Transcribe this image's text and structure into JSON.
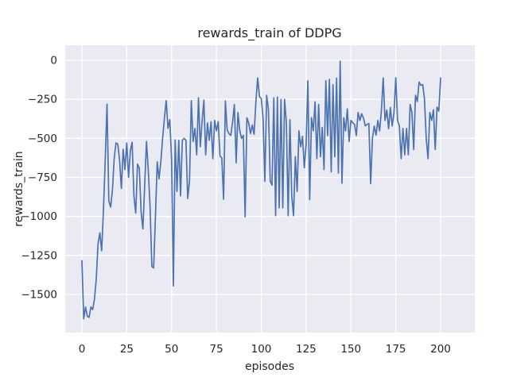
{
  "figure": {
    "title": "rewards_train of DDPG",
    "xlabel": "episodes",
    "ylabel": "rewards_train"
  },
  "colors": {
    "figure_bg": "#ffffff",
    "plot_bg": "#eaeaf2",
    "grid": "#ffffff",
    "line": "#4c72b0",
    "text": "#262626"
  },
  "chart_data": {
    "type": "line",
    "title": "rewards_train of DDPG",
    "xlabel": "episodes",
    "ylabel": "rewards_train",
    "legend": null,
    "grid": true,
    "x_ticks": [
      0,
      25,
      50,
      75,
      100,
      125,
      150,
      175,
      200
    ],
    "y_ticks": [
      0,
      -250,
      -500,
      -750,
      -1000,
      -1250,
      -1500
    ],
    "xlim": [
      -8.5,
      219
    ],
    "ylim": [
      -1741,
      96
    ],
    "x": [
      0,
      1,
      2,
      3,
      4,
      5,
      6,
      7,
      8,
      9,
      10,
      11,
      12,
      13,
      14,
      15,
      16,
      17,
      18,
      19,
      20,
      21,
      22,
      23,
      24,
      25,
      26,
      27,
      28,
      29,
      30,
      31,
      32,
      33,
      34,
      35,
      36,
      37,
      38,
      39,
      40,
      41,
      42,
      43,
      44,
      45,
      46,
      47,
      48,
      49,
      50,
      51,
      52,
      53,
      54,
      55,
      56,
      57,
      58,
      59,
      60,
      61,
      62,
      63,
      64,
      65,
      66,
      67,
      68,
      69,
      70,
      71,
      72,
      73,
      74,
      75,
      76,
      77,
      78,
      79,
      80,
      81,
      82,
      83,
      84,
      85,
      86,
      87,
      88,
      89,
      90,
      91,
      92,
      93,
      94,
      95,
      96,
      97,
      98,
      99,
      100,
      101,
      102,
      103,
      104,
      105,
      106,
      107,
      108,
      109,
      110,
      111,
      112,
      113,
      114,
      115,
      116,
      117,
      118,
      119,
      120,
      121,
      122,
      123,
      124,
      125,
      126,
      127,
      128,
      129,
      130,
      131,
      132,
      133,
      134,
      135,
      136,
      137,
      138,
      139,
      140,
      141,
      142,
      143,
      144,
      145,
      146,
      147,
      148,
      149,
      150,
      151,
      152,
      153,
      154,
      155,
      156,
      157,
      158,
      159,
      160,
      161,
      162,
      163,
      164,
      165,
      166,
      167,
      168,
      169,
      170,
      171,
      172,
      173,
      174,
      175,
      176,
      177,
      178,
      179,
      180,
      181,
      182,
      183,
      184,
      185,
      186,
      187,
      188,
      189,
      190,
      191,
      192,
      193,
      194,
      195,
      196,
      197,
      198,
      199,
      200
    ],
    "y": [
      -1283,
      -1656,
      -1580,
      -1639,
      -1647,
      -1580,
      -1597,
      -1529,
      -1400,
      -1173,
      -1105,
      -1220,
      -962,
      -639,
      -280,
      -900,
      -940,
      -834,
      -630,
      -529,
      -537,
      -640,
      -820,
      -570,
      -700,
      -529,
      -750,
      -580,
      -525,
      -870,
      -978,
      -665,
      -690,
      -970,
      -1080,
      -800,
      -520,
      -700,
      -940,
      -1320,
      -1330,
      -1000,
      -650,
      -760,
      -650,
      -500,
      -370,
      -258,
      -436,
      -380,
      -635,
      -1445,
      -510,
      -840,
      -512,
      -868,
      -512,
      -500,
      -512,
      -885,
      -770,
      -258,
      -520,
      -436,
      -605,
      -240,
      -554,
      -393,
      -255,
      -605,
      -401,
      -512,
      -393,
      -630,
      -385,
      -452,
      -393,
      -613,
      -625,
      -890,
      -260,
      -447,
      -470,
      -481,
      -396,
      -283,
      -656,
      -334,
      -450,
      -500,
      -480,
      -1003,
      -368,
      -402,
      -469,
      -415,
      -474,
      -266,
      -113,
      -232,
      -245,
      -368,
      -775,
      -224,
      -315,
      -775,
      -800,
      -240,
      -995,
      -235,
      -945,
      -250,
      -945,
      -250,
      -400,
      -995,
      -380,
      -870,
      -995,
      -617,
      -840,
      -452,
      -554,
      -487,
      -688,
      -538,
      -131,
      -893,
      -367,
      -452,
      -266,
      -630,
      -283,
      -617,
      -430,
      -700,
      -131,
      -482,
      -122,
      -715,
      -156,
      -617,
      -114,
      -722,
      -5,
      -787,
      -367,
      -452,
      -311,
      -520,
      -385,
      -400,
      -410,
      -482,
      -334,
      -385,
      -342,
      -370,
      -420,
      -410,
      -405,
      -790,
      -498,
      -421,
      -479,
      -385,
      -452,
      -319,
      -113,
      -385,
      -319,
      -438,
      -302,
      -421,
      -336,
      -112,
      -385,
      -420,
      -630,
      -436,
      -605,
      -436,
      -605,
      -283,
      -334,
      -571,
      -224,
      -264,
      -139,
      -160,
      -155,
      -246,
      -503,
      -630,
      -334,
      -385,
      -317,
      -571,
      -300,
      -325,
      -113
    ]
  }
}
